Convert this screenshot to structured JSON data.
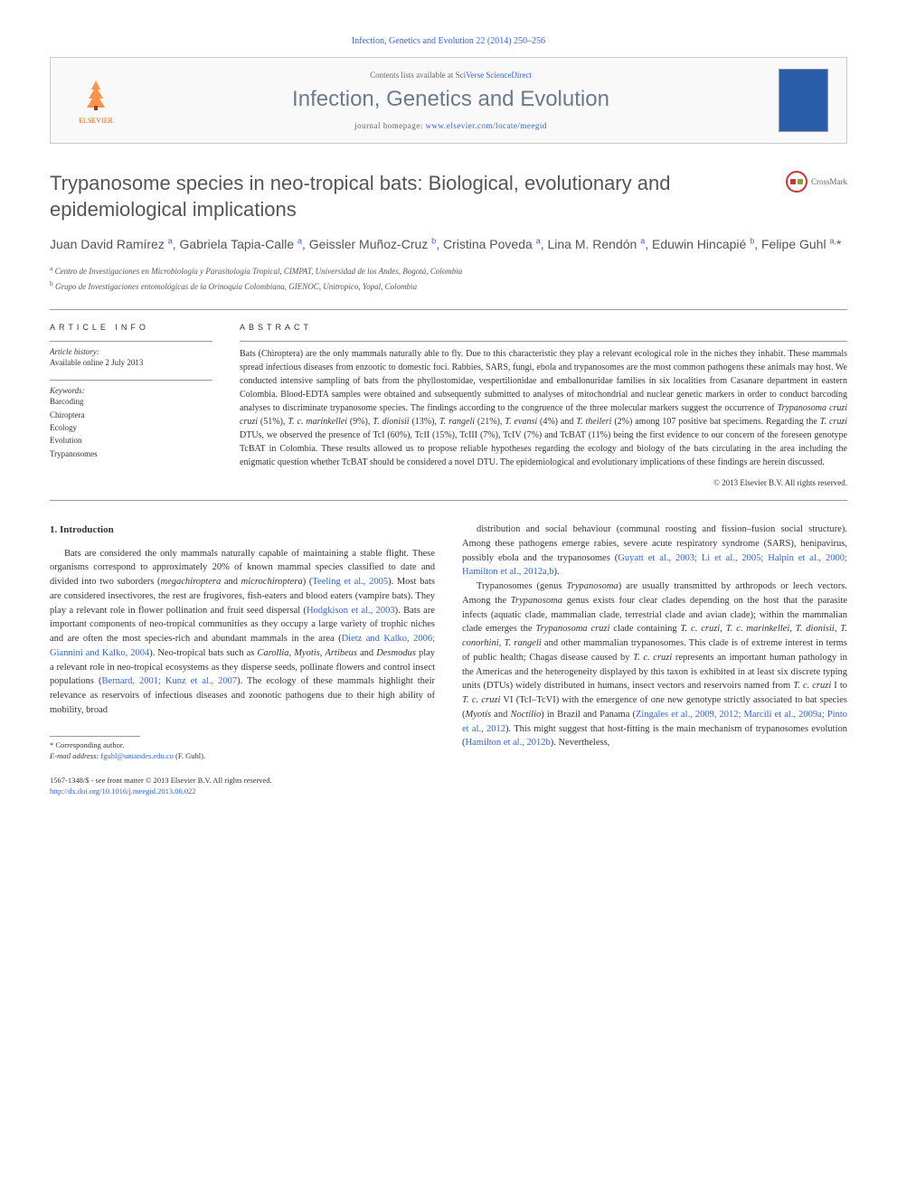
{
  "citation": "Infection, Genetics and Evolution 22 (2014) 250–256",
  "header": {
    "contents_prefix": "Contents lists available at ",
    "contents_link": "SciVerse ScienceDirect",
    "journal": "Infection, Genetics and Evolution",
    "homepage_prefix": "journal homepage: ",
    "homepage_link": "www.elsevier.com/locate/meegid",
    "publisher": "ELSEVIER"
  },
  "crossmark_label": "CrossMark",
  "title": "Trypanosome species in neo-tropical bats: Biological, evolutionary and epidemiological implications",
  "authors_html": "Juan David Ramírez <sup>a</sup>, Gabriela Tapia-Calle <sup>a</sup>, Geissler Muñoz-Cruz <sup>b</sup>, Cristina Poveda <sup>a</sup>, Lina M. Rendón <sup>a</sup>, Eduwin Hincapié <sup>b</sup>, Felipe Guhl <sup>a,</sup>*",
  "affiliations": [
    {
      "sup": "a",
      "text": "Centro de Investigaciones en Microbiología y Parasitología Tropical, CIMPAT, Universidad de los Andes, Bogotá, Colombia"
    },
    {
      "sup": "b",
      "text": "Grupo de Investigaciones entomológicas de la Orinoquía Colombiana, GIENOC, Unitropico, Yopal, Colombia"
    }
  ],
  "article_info": {
    "header": "ARTICLE INFO",
    "history_label": "Article history:",
    "history_value": "Available online 2 July 2013",
    "keywords_label": "Keywords:",
    "keywords": [
      "Barcoding",
      "Chiroptera",
      "Ecology",
      "Evolution",
      "Trypanosomes"
    ]
  },
  "abstract": {
    "header": "ABSTRACT",
    "text": "Bats (Chiroptera) are the only mammals naturally able to fly. Due to this characteristic they play a relevant ecological role in the niches they inhabit. These mammals spread infectious diseases from enzootic to domestic foci. Rabbies, SARS, fungi, ebola and trypanosomes are the most common pathogens these animals may host. We conducted intensive sampling of bats from the phyllostomidae, vespertilionidae and emballonuridae families in six localities from Casanare department in eastern Colombia. Blood-EDTA samples were obtained and subsequently submitted to analyses of mitochondrial and nuclear genetic markers in order to conduct barcoding analyses to discriminate trypanosome species. The findings according to the congruence of the three molecular markers suggest the occurrence of <em>Trypanosoma cruzi cruzi</em> (51%), <em>T. c. marinkellei</em> (9%), <em>T. dionisii</em> (13%), <em>T. rangeli</em> (21%), <em>T. evansi</em> (4%) and <em>T. theileri</em> (2%) among 107 positive bat specimens. Regarding the <em>T. cruzi</em> DTUs, we observed the presence of TcI (60%), TcII (15%), TcIII (7%), TcIV (7%) and TcBAT (11%) being the first evidence to our concern of the foreseen genotype TcBAT in Colombia. These results allowed us to propose reliable hypotheses regarding the ecology and biology of the bats circulating in the area including the enigmatic question whether TcBAT should be considered a novel DTU. The epidemiological and evolutionary implications of these findings are herein discussed.",
    "copyright": "© 2013 Elsevier B.V. All rights reserved."
  },
  "body": {
    "section_number": "1.",
    "section_title": "Introduction",
    "col1_p1": "Bats are considered the only mammals naturally capable of maintaining a stable flight. These organisms correspond to approximately 20% of known mammal species classified to date and divided into two suborders (<em>megachiroptera</em> and <em>microchiroptera</em>) (<span class='ref'>Teeling et al., 2005</span>). Most bats are considered insectivores, the rest are frugivores, fish-eaters and blood eaters (vampire bats). They play a relevant role in flower pollination and fruit seed dispersal (<span class='ref'>Hodgkison et al., 2003</span>). Bats are important components of neo-tropical communities as they occupy a large variety of trophic niches and are often the most species-rich and abundant mammals in the area (<span class='ref'>Dietz and Kalko, 2006; Giannini and Kalko, 2004</span>). Neo-tropical bats such as <em>Carollia</em>, <em>Myotis</em>, <em>Artibeus</em> and <em>Desmodus</em> play a relevant role in neo-tropical ecosystems as they disperse seeds, pollinate flowers and control insect populations (<span class='ref'>Bernard, 2001; Kunz et al., 2007</span>). The ecology of these mammals highlight their relevance as reservoirs of infectious diseases and zoonotic pathogens due to their high ability of mobility, broad",
    "col2_p1": "distribution and social behaviour (communal roosting and fission–fusion social structure). Among these pathogens emerge rabies, severe acute respiratory syndrome (SARS), henipavirus, possibly ebola and the trypanosomes (<span class='ref'>Guyatt et al., 2003; Li et al., 2005; Halpin et al., 2000; Hamilton et al., 2012a,b</span>).",
    "col2_p2": "Trypanosomes (genus <em>Trypanosoma</em>) are usually transmitted by arthropods or leech vectors. Among the <em>Trypanosoma</em> genus exists four clear clades depending on the host that the parasite infects (aquatic clade, mammalian clade, terrestrial clade and avian clade); within the mammalian clade emerges the <em>Trypanosoma cruzi</em> clade containing <em>T. c. cruzi</em>, <em>T. c. marinkellei</em>, <em>T. dionisii</em>, <em>T. conorhini</em>, <em>T. rangeli</em> and other mammalian trypanosomes. This clade is of extreme interest in terms of public health; Chagas disease caused by <em>T. c. cruzi</em> represents an important human pathology in the Americas and the heterogeneity displayed by this taxon is exhibited in at least six discrete typing units (DTUs) widely distributed in humans, insect vectors and reservoirs named from <em>T. c. cruzi</em> I to <em>T. c. cruzi</em> VI (TcI–TcVI) with the emergence of one new genotype strictly associated to bat species (<em>Myotis</em> and <em>Noctilio</em>) in Brazil and Panama (<span class='ref'>Zingales et al., 2009, 2012; Marcili et al., 2009a; Pinto et al., 2012</span>). This might suggest that host-fitting is the main mechanism of trypanosomes evolution (<span class='ref'>Hamilton et al., 2012b</span>). Nevertheless,"
  },
  "footnotes": {
    "corresponding": "* Corresponding author.",
    "email_label": "E-mail address:",
    "email": "fguhl@uniandes.edu.co",
    "email_name": "(F. Guhl)."
  },
  "footer": {
    "issn_line": "1567-1348/$ - see front matter © 2013 Elsevier B.V. All rights reserved.",
    "doi": "http://dx.doi.org/10.1016/j.meegid.2013.06.022"
  },
  "colors": {
    "link": "#3366cc",
    "title_gray": "#555555",
    "journal_gray": "#6b7a8f",
    "elsevier_orange": "#ff6600",
    "crossmark_red": "#cc3333"
  }
}
